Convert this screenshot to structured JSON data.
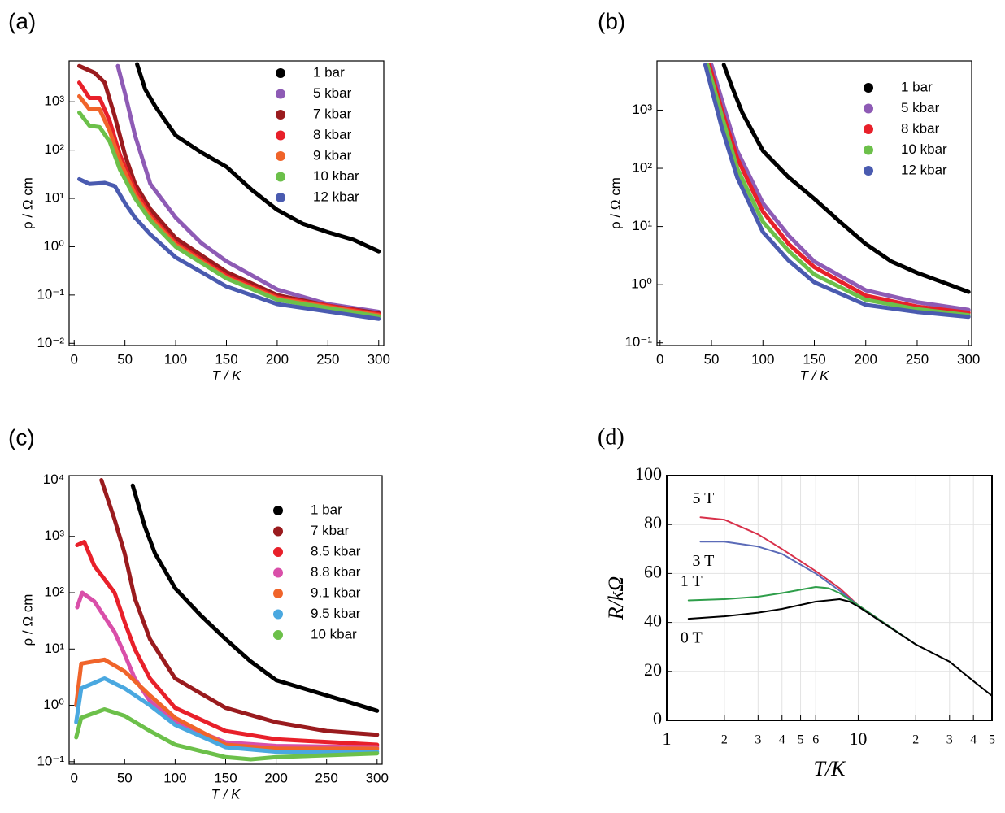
{
  "chart_data": [
    {
      "type": "line",
      "title": "(a)",
      "xlabel": "T / K",
      "ylabel": "ρ / Ω cm",
      "ylog": true,
      "legend": "upper right",
      "xlim": [
        -5,
        305
      ],
      "xticks": [
        0,
        50,
        100,
        150,
        200,
        250,
        300
      ],
      "ylim": [
        0.009,
        7000
      ],
      "yticks": [
        {
          "value": 0.01,
          "label": "10⁻²"
        },
        {
          "value": 0.1,
          "label": "10⁻¹"
        },
        {
          "value": 1,
          "label": "10⁰"
        },
        {
          "value": 10,
          "label": "10¹"
        },
        {
          "value": 100,
          "label": "10²"
        },
        {
          "value": 1000,
          "label": "10³"
        }
      ],
      "series": [
        {
          "name": "1 bar",
          "color": "#000000",
          "x": [
            62,
            70,
            80,
            100,
            125,
            150,
            175,
            200,
            225,
            250,
            275,
            300
          ],
          "values": [
            6000,
            1800,
            800,
            200,
            90,
            45,
            15,
            5.8,
            3,
            2,
            1.4,
            0.8
          ]
        },
        {
          "name": "5 kbar",
          "color": "#8e5bb5",
          "x": [
            43,
            50,
            60,
            75,
            100,
            125,
            150,
            200,
            250,
            300
          ],
          "values": [
            5500,
            1500,
            200,
            20,
            4,
            1.2,
            0.5,
            0.13,
            0.065,
            0.045
          ]
        },
        {
          "name": "7 kbar",
          "color": "#9a1b1e",
          "x": [
            5,
            20,
            30,
            40,
            50,
            60,
            75,
            100,
            150,
            200,
            250,
            300
          ],
          "values": [
            5500,
            4000,
            2500,
            500,
            80,
            20,
            6,
            1.5,
            0.3,
            0.1,
            0.06,
            0.042
          ]
        },
        {
          "name": "8 kbar",
          "color": "#e8202a",
          "x": [
            5,
            15,
            25,
            35,
            45,
            60,
            75,
            100,
            150,
            200,
            300
          ],
          "values": [
            2500,
            1200,
            1200,
            400,
            80,
            15,
            4.5,
            1.2,
            0.25,
            0.09,
            0.04
          ]
        },
        {
          "name": "9 kbar",
          "color": "#f0642a",
          "x": [
            5,
            15,
            25,
            35,
            45,
            60,
            75,
            100,
            150,
            200,
            300
          ],
          "values": [
            1300,
            700,
            700,
            250,
            60,
            12,
            4,
            1.1,
            0.23,
            0.085,
            0.038
          ]
        },
        {
          "name": "10 kbar",
          "color": "#6cc04a",
          "x": [
            5,
            15,
            25,
            35,
            45,
            60,
            75,
            100,
            150,
            200,
            300
          ],
          "values": [
            600,
            320,
            300,
            150,
            40,
            10,
            3.5,
            1,
            0.22,
            0.08,
            0.036
          ]
        },
        {
          "name": "12 kbar",
          "color": "#4a5bb0",
          "x": [
            5,
            15,
            30,
            40,
            50,
            60,
            75,
            100,
            150,
            200,
            300
          ],
          "values": [
            25,
            20,
            21,
            18,
            8,
            4,
            1.8,
            0.6,
            0.15,
            0.065,
            0.032
          ]
        }
      ]
    },
    {
      "type": "line",
      "title": "(b)",
      "xlabel": "T / K",
      "ylabel": "ρ / Ω cm",
      "ylog": true,
      "legend": "upper right",
      "xlim": [
        -3,
        303
      ],
      "xticks": [
        0,
        50,
        100,
        150,
        200,
        250,
        300
      ],
      "ylim": [
        0.09,
        7000
      ],
      "yticks": [
        {
          "value": 0.1,
          "label": "10⁻¹"
        },
        {
          "value": 1,
          "label": "10⁰"
        },
        {
          "value": 10,
          "label": "10¹"
        },
        {
          "value": 100,
          "label": "10²"
        },
        {
          "value": 1000,
          "label": "10³"
        }
      ],
      "series": [
        {
          "name": "1 bar",
          "color": "#000000",
          "x": [
            62,
            70,
            80,
            100,
            125,
            150,
            175,
            200,
            225,
            250,
            275,
            300
          ],
          "values": [
            6000,
            2500,
            900,
            200,
            70,
            30,
            12,
            5,
            2.5,
            1.6,
            1.1,
            0.75
          ]
        },
        {
          "name": "5 kbar",
          "color": "#8e5bb5",
          "x": [
            50,
            60,
            75,
            100,
            125,
            150,
            200,
            250,
            300
          ],
          "values": [
            6000,
            1500,
            200,
            25,
            7,
            2.5,
            0.8,
            0.5,
            0.37
          ]
        },
        {
          "name": "8 kbar",
          "color": "#e8202a",
          "x": [
            48,
            60,
            75,
            100,
            125,
            150,
            200,
            250,
            300
          ],
          "values": [
            6000,
            1000,
            150,
            18,
            5,
            2,
            0.65,
            0.42,
            0.33
          ]
        },
        {
          "name": "10 kbar",
          "color": "#6cc04a",
          "x": [
            46,
            60,
            75,
            100,
            125,
            150,
            200,
            250,
            300
          ],
          "values": [
            6000,
            800,
            100,
            12,
            3.8,
            1.5,
            0.55,
            0.38,
            0.3
          ]
        },
        {
          "name": "12 kbar",
          "color": "#4a5bb0",
          "x": [
            44,
            60,
            75,
            100,
            125,
            150,
            200,
            250,
            300
          ],
          "values": [
            6000,
            500,
            70,
            8,
            2.6,
            1.1,
            0.45,
            0.34,
            0.28
          ]
        }
      ]
    },
    {
      "type": "line",
      "title": "(c)",
      "xlabel": "T / K",
      "ylabel": "ρ / Ω cm",
      "ylog": true,
      "legend": "upper right",
      "xlim": [
        -5,
        305
      ],
      "xticks": [
        0,
        50,
        100,
        150,
        200,
        250,
        300
      ],
      "ylim": [
        0.09,
        12000
      ],
      "yticks": [
        {
          "value": 0.1,
          "label": "10⁻¹"
        },
        {
          "value": 1,
          "label": "10⁰"
        },
        {
          "value": 10,
          "label": "10¹"
        },
        {
          "value": 100,
          "label": "10²"
        },
        {
          "value": 1000,
          "label": "10³"
        },
        {
          "value": 10000,
          "label": "10⁴"
        }
      ],
      "series": [
        {
          "name": "1 bar",
          "color": "#000000",
          "x": [
            58,
            70,
            80,
            100,
            125,
            150,
            175,
            200,
            250,
            275,
            300
          ],
          "values": [
            8000,
            1500,
            500,
            120,
            40,
            15,
            6,
            2.8,
            1.5,
            1.1,
            0.8
          ]
        },
        {
          "name": "7 kbar",
          "color": "#9a1b1e",
          "x": [
            27,
            40,
            50,
            60,
            75,
            100,
            150,
            200,
            250,
            300
          ],
          "values": [
            10000,
            2000,
            500,
            80,
            15,
            3,
            0.9,
            0.5,
            0.35,
            0.3
          ]
        },
        {
          "name": "8.5 kbar",
          "color": "#e8202a",
          "x": [
            3,
            10,
            20,
            40,
            50,
            60,
            75,
            100,
            150,
            200,
            300
          ],
          "values": [
            700,
            800,
            300,
            100,
            30,
            10,
            3,
            0.9,
            0.35,
            0.25,
            0.2
          ]
        },
        {
          "name": "8.8 kbar",
          "color": "#d94fa9",
          "x": [
            3,
            8,
            20,
            40,
            50,
            60,
            75,
            100,
            150,
            200,
            300
          ],
          "values": [
            55,
            100,
            70,
            20,
            8,
            3,
            1.2,
            0.5,
            0.22,
            0.19,
            0.18
          ]
        },
        {
          "name": "9.1 kbar",
          "color": "#f0642a",
          "x": [
            2,
            7,
            30,
            50,
            75,
            100,
            150,
            200,
            300
          ],
          "values": [
            1,
            5.5,
            6.5,
            4,
            1.5,
            0.6,
            0.2,
            0.17,
            0.17
          ]
        },
        {
          "name": "9.5 kbar",
          "color": "#4aa8e0",
          "x": [
            2,
            7,
            30,
            50,
            75,
            100,
            150,
            200,
            300
          ],
          "values": [
            0.5,
            2,
            3,
            2,
            1,
            0.45,
            0.18,
            0.15,
            0.15
          ]
        },
        {
          "name": "10 kbar",
          "color": "#6cc04a",
          "x": [
            2,
            7,
            30,
            50,
            75,
            100,
            150,
            175,
            200,
            300
          ],
          "values": [
            0.27,
            0.6,
            0.85,
            0.65,
            0.35,
            0.2,
            0.12,
            0.11,
            0.12,
            0.14
          ]
        }
      ]
    },
    {
      "type": "line",
      "title": "(d)",
      "xlabel": "T/K",
      "ylabel": "R/kΩ",
      "xlog": true,
      "grid": true,
      "xlim": [
        1,
        50
      ],
      "xticks": [
        1,
        2,
        3,
        4,
        5,
        6,
        10,
        {
          "value": 20,
          "label": "2"
        },
        {
          "value": 30,
          "label": "3"
        },
        {
          "value": 40,
          "label": "4"
        },
        {
          "value": 50,
          "label": "5"
        }
      ],
      "ylim": [
        0,
        100
      ],
      "yticks": [
        0,
        20,
        40,
        60,
        80,
        100
      ],
      "series": [
        {
          "name": "5 T",
          "color": "#d8304a",
          "x": [
            1.5,
            2,
            3,
            4,
            6,
            8,
            10,
            20
          ],
          "values": [
            83,
            82,
            76,
            70,
            61,
            54,
            47,
            31
          ]
        },
        {
          "name": "3 T",
          "color": "#5b6bb8",
          "x": [
            1.5,
            2,
            3,
            4,
            6,
            8,
            10,
            20
          ],
          "values": [
            73,
            73,
            71,
            68,
            60,
            53,
            47,
            31
          ]
        },
        {
          "name": "1 T",
          "color": "#2e9e4a",
          "x": [
            1.3,
            2,
            3,
            4,
            6,
            7,
            8,
            10,
            20
          ],
          "values": [
            49,
            49.5,
            50.5,
            52,
            54.5,
            54,
            52,
            47,
            31
          ]
        },
        {
          "name": "0 T",
          "color": "#000000",
          "x": [
            1.3,
            2,
            3,
            4,
            6,
            8,
            9,
            10,
            20,
            30,
            40,
            50
          ],
          "values": [
            41.5,
            42.5,
            44,
            45.5,
            48.5,
            49.5,
            48.5,
            46.5,
            31,
            24,
            16,
            10
          ]
        }
      ]
    }
  ]
}
